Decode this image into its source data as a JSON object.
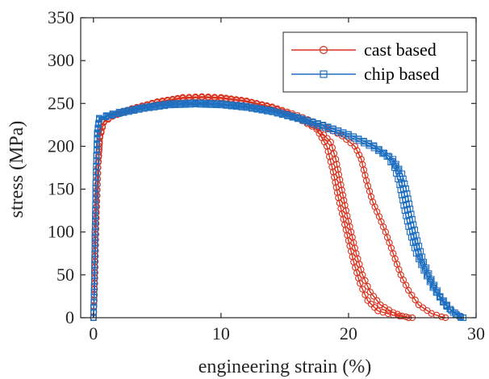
{
  "chart_data": {
    "type": "line",
    "title": "",
    "xlabel": "engineering strain (%)",
    "ylabel": "stress (MPa)",
    "xlim": [
      -1,
      30
    ],
    "ylim": [
      0,
      350
    ],
    "xticks": [
      0,
      10,
      20,
      30
    ],
    "yticks": [
      0,
      50,
      100,
      150,
      200,
      250,
      300,
      350
    ],
    "grid": false,
    "legend_placement": "top-right",
    "series": [
      {
        "name": "cast based",
        "color": "#d9321e",
        "marker": "circle",
        "curves": [
          [
            [
              0,
              0
            ],
            [
              0.1,
              40
            ],
            [
              0.2,
              110
            ],
            [
              0.35,
              175
            ],
            [
              0.5,
              210
            ],
            [
              0.8,
              228
            ],
            [
              1.5,
              235
            ],
            [
              3,
              243
            ],
            [
              5,
              251
            ],
            [
              7,
              256
            ],
            [
              8.5,
              257
            ],
            [
              10,
              256
            ],
            [
              12,
              252
            ],
            [
              14,
              245
            ],
            [
              16,
              233
            ],
            [
              17.5,
              220
            ],
            [
              18.3,
              200
            ],
            [
              18.8,
              170
            ],
            [
              19.2,
              140
            ],
            [
              19.6,
              115
            ],
            [
              20,
              90
            ],
            [
              20.4,
              65
            ],
            [
              20.9,
              40
            ],
            [
              21.5,
              20
            ],
            [
              22.3,
              8
            ],
            [
              23.5,
              3
            ],
            [
              24.5,
              1
            ],
            [
              25,
              0
            ]
          ],
          [
            [
              0,
              0
            ],
            [
              0.1,
              40
            ],
            [
              0.2,
              110
            ],
            [
              0.35,
              175
            ],
            [
              0.5,
              212
            ],
            [
              0.8,
              229
            ],
            [
              1.5,
              236
            ],
            [
              3,
              244
            ],
            [
              5,
              252
            ],
            [
              7,
              257
            ],
            [
              8.5,
              258
            ],
            [
              10,
              257
            ],
            [
              12,
              253
            ],
            [
              14,
              246
            ],
            [
              16,
              236
            ],
            [
              18,
              224
            ],
            [
              19.5,
              212
            ],
            [
              20.5,
              200
            ],
            [
              21,
              185
            ],
            [
              21.4,
              160
            ],
            [
              21.9,
              135
            ],
            [
              22.4,
              118
            ],
            [
              22.9,
              100
            ],
            [
              23.5,
              75
            ],
            [
              24.1,
              50
            ],
            [
              24.7,
              32
            ],
            [
              25.5,
              15
            ],
            [
              26.5,
              5
            ],
            [
              27.3,
              1
            ],
            [
              27.6,
              0
            ]
          ],
          [
            [
              0,
              0
            ],
            [
              0.1,
              40
            ],
            [
              0.2,
              110
            ],
            [
              0.35,
              175
            ],
            [
              0.5,
              211
            ],
            [
              0.8,
              228
            ],
            [
              1.5,
              235
            ],
            [
              3,
              243
            ],
            [
              5,
              251
            ],
            [
              7,
              256
            ],
            [
              8.5,
              257
            ],
            [
              10,
              256
            ],
            [
              12,
              252
            ],
            [
              14,
              245
            ],
            [
              16,
              234
            ],
            [
              17.5,
              222
            ],
            [
              18.6,
              205
            ],
            [
              19,
              185
            ],
            [
              19.4,
              155
            ],
            [
              19.8,
              125
            ],
            [
              20.2,
              100
            ],
            [
              20.6,
              75
            ],
            [
              21.1,
              50
            ],
            [
              21.7,
              30
            ],
            [
              22.5,
              15
            ],
            [
              23.5,
              6
            ],
            [
              24.2,
              2
            ],
            [
              24.7,
              0
            ]
          ]
        ]
      },
      {
        "name": "chip based",
        "color": "#1f6fc0",
        "marker": "square",
        "curves": [
          [
            [
              0,
              0
            ],
            [
              0.05,
              30
            ],
            [
              0.12,
              100
            ],
            [
              0.2,
              170
            ],
            [
              0.3,
              215
            ],
            [
              0.45,
              232
            ],
            [
              1,
              235
            ],
            [
              2,
              239
            ],
            [
              4,
              245
            ],
            [
              6,
              249
            ],
            [
              8,
              250
            ],
            [
              10,
              249
            ],
            [
              12,
              246
            ],
            [
              14,
              241
            ],
            [
              16,
              233
            ],
            [
              18,
              224
            ],
            [
              20,
              214
            ],
            [
              22,
              200
            ],
            [
              23.5,
              185
            ],
            [
              24.2,
              168
            ],
            [
              24.6,
              145
            ],
            [
              25,
              115
            ],
            [
              25.4,
              90
            ],
            [
              25.9,
              65
            ],
            [
              26.5,
              45
            ],
            [
              27.2,
              25
            ],
            [
              28,
              10
            ],
            [
              28.7,
              2
            ],
            [
              29,
              0
            ]
          ],
          [
            [
              0,
              0
            ],
            [
              0.05,
              30
            ],
            [
              0.12,
              100
            ],
            [
              0.2,
              170
            ],
            [
              0.3,
              216
            ],
            [
              0.45,
              233
            ],
            [
              1,
              236
            ],
            [
              2,
              240
            ],
            [
              4,
              246
            ],
            [
              6,
              250
            ],
            [
              8,
              251
            ],
            [
              10,
              250
            ],
            [
              12,
              247
            ],
            [
              14,
              242
            ],
            [
              16,
              234
            ],
            [
              18,
              225
            ],
            [
              20,
              214
            ],
            [
              22,
              201
            ],
            [
              23.2,
              188
            ],
            [
              23.9,
              172
            ],
            [
              24.3,
              150
            ],
            [
              24.7,
              120
            ],
            [
              25.1,
              95
            ],
            [
              25.6,
              70
            ],
            [
              26.2,
              50
            ],
            [
              26.9,
              30
            ],
            [
              27.7,
              13
            ],
            [
              28.4,
              4
            ],
            [
              28.8,
              0
            ]
          ],
          [
            [
              0,
              0
            ],
            [
              0.05,
              30
            ],
            [
              0.12,
              100
            ],
            [
              0.2,
              170
            ],
            [
              0.3,
              214
            ],
            [
              0.45,
              231
            ],
            [
              1,
              234
            ],
            [
              2,
              238
            ],
            [
              4,
              244
            ],
            [
              6,
              248
            ],
            [
              8,
              249
            ],
            [
              10,
              248
            ],
            [
              12,
              245
            ],
            [
              14,
              240
            ],
            [
              16,
              232
            ],
            [
              18,
              222
            ],
            [
              20,
              212
            ],
            [
              22,
              198
            ],
            [
              23,
              188
            ],
            [
              23.6,
              175
            ],
            [
              24,
              155
            ],
            [
              24.4,
              125
            ],
            [
              24.8,
              100
            ],
            [
              25.3,
              75
            ],
            [
              25.9,
              55
            ],
            [
              26.6,
              35
            ],
            [
              27.4,
              18
            ],
            [
              28.2,
              6
            ],
            [
              28.8,
              1
            ],
            [
              29,
              0
            ]
          ]
        ]
      }
    ]
  }
}
